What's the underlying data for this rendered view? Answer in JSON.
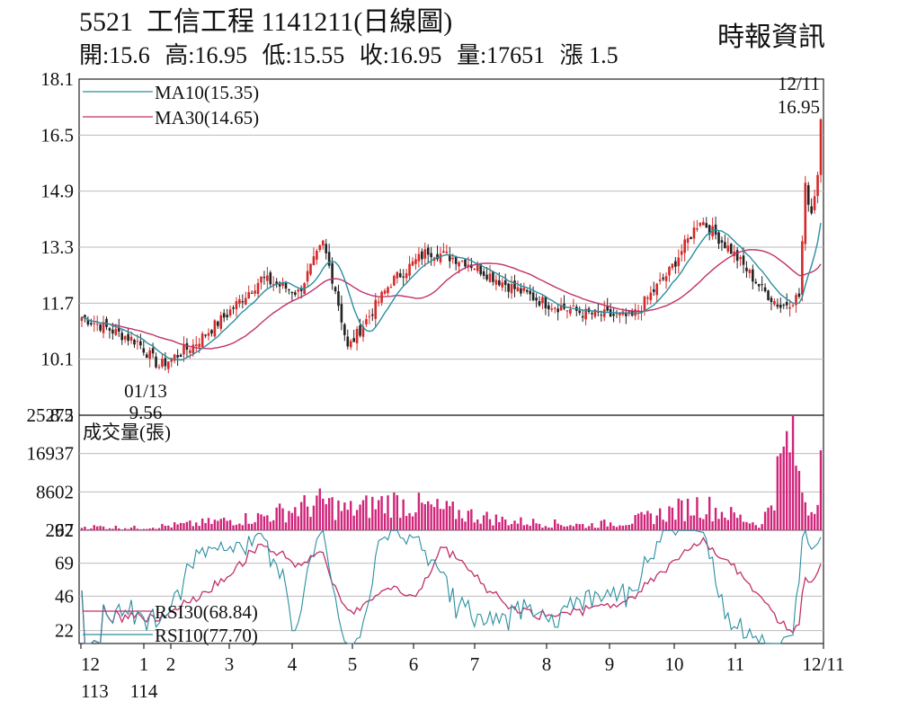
{
  "header": {
    "code": "5521",
    "name": "工信工程",
    "date": "1141211(日線圖)",
    "open": "開:15.6",
    "high": "高:16.95",
    "low": "低:15.55",
    "close": "收:16.95",
    "volume": "量:17651",
    "change": "漲 1.5",
    "brand": "時報資訊"
  },
  "chart_data": [
    {
      "type": "candlestick",
      "yticks": [
        "18.1",
        "16.5",
        "14.9",
        "13.3",
        "11.7",
        "10.1",
        "8.5"
      ],
      "ylim": [
        8.5,
        18.1
      ],
      "legend": [
        {
          "label": "MA10(15.35)",
          "color": "#2a8fa0"
        },
        {
          "label": "MA30(14.65)",
          "color": "#c0306a"
        }
      ],
      "annotations": [
        {
          "date": "12/11",
          "value": "16.95",
          "kind": "high"
        },
        {
          "date": "01/13",
          "value": "9.56",
          "kind": "low"
        }
      ],
      "colors": {
        "up": "#d42a2a",
        "down": "#222222"
      },
      "keypoints": [
        {
          "m": "12",
          "price": 11.3
        },
        {
          "m": "1",
          "price": 10.6
        },
        {
          "m": "1",
          "price": 9.9
        },
        {
          "m": "2",
          "price": 10.5
        },
        {
          "m": "2",
          "price": 11.3
        },
        {
          "m": "3",
          "price": 12.4
        },
        {
          "m": "3",
          "price": 12.0
        },
        {
          "m": "4",
          "price": 13.4
        },
        {
          "m": "4",
          "price": 12.1
        },
        {
          "m": "4",
          "price": 10.4
        },
        {
          "m": "5",
          "price": 12.3
        },
        {
          "m": "5",
          "price": 13.2
        },
        {
          "m": "6",
          "price": 12.9
        },
        {
          "m": "6",
          "price": 12.2
        },
        {
          "m": "7",
          "price": 11.7
        },
        {
          "m": "7",
          "price": 11.4
        },
        {
          "m": "8",
          "price": 11.3
        },
        {
          "m": "8",
          "price": 12.6
        },
        {
          "m": "9",
          "price": 14.1
        },
        {
          "m": "9",
          "price": 13.2
        },
        {
          "m": "10",
          "price": 12.1
        },
        {
          "m": "10",
          "price": 11.6
        },
        {
          "m": "11",
          "price": 11.9
        },
        {
          "m": "11",
          "price": 15.0
        },
        {
          "m": "11",
          "price": 14.3
        },
        {
          "m": "12",
          "price": 15.4
        },
        {
          "m": "12/11",
          "price": 16.95
        }
      ]
    },
    {
      "type": "bar",
      "title": "成交量(張)",
      "yticks": [
        "25272",
        "16937",
        "8602",
        "267"
      ],
      "ylim": [
        267,
        25272
      ],
      "color": "#d0247a",
      "keypoints": [
        {
          "m": "12",
          "v": 1200
        },
        {
          "m": "1",
          "v": 900
        },
        {
          "m": "2",
          "v": 1800
        },
        {
          "m": "3",
          "v": 3500
        },
        {
          "m": "4",
          "v": 7000
        },
        {
          "m": "4",
          "v": 5000
        },
        {
          "m": "5",
          "v": 7200
        },
        {
          "m": "6",
          "v": 2500
        },
        {
          "m": "7",
          "v": 1500
        },
        {
          "m": "8",
          "v": 2500
        },
        {
          "m": "9",
          "v": 6500
        },
        {
          "m": "10",
          "v": 1500
        },
        {
          "m": "11",
          "v": 25000
        },
        {
          "m": "11",
          "v": 12000
        },
        {
          "m": "12",
          "v": 5000
        },
        {
          "m": "12/11",
          "v": 17651
        }
      ]
    },
    {
      "type": "line",
      "yticks": [
        "92",
        "69",
        "46",
        "22"
      ],
      "ylim": [
        13,
        92
      ],
      "series": [
        {
          "name": "RSI30(68.84)",
          "color": "#c0306a"
        },
        {
          "name": "RSI10(77.70)",
          "color": "#2a8fa0"
        }
      ]
    }
  ],
  "xaxis": {
    "ticks": [
      "12",
      "1",
      "2",
      "3",
      "4",
      "5",
      "6",
      "7",
      "8",
      "9",
      "10",
      "11",
      "12/11"
    ],
    "year_labels": [
      {
        "label": "113",
        "under": "12"
      },
      {
        "label": "114",
        "under": "1"
      }
    ]
  }
}
